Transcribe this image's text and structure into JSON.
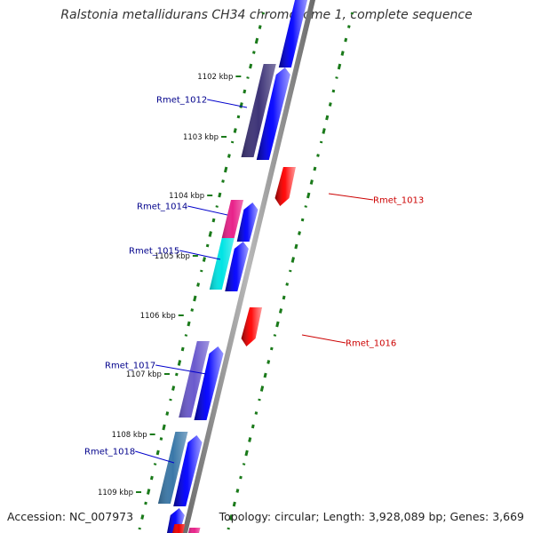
{
  "title": "Ralstonia metallidurans CH34 chromosome 1, complete sequence",
  "accession": "Accession: NC_007973",
  "topology": "Topology: circular; Length: 3,928,089 bp; Genes: 3,669",
  "colors": {
    "backbone": "#8c8c8c",
    "forward_cds": "#0000ee",
    "reverse_cds": "#ee0000",
    "gc_ticks": "#1a7a1a",
    "label_forward": "#00008b",
    "label_reverse": "#cc0000"
  },
  "ticks": [
    {
      "label": "1102 kbp"
    },
    {
      "label": "1103 kbp"
    },
    {
      "label": "1104 kbp"
    },
    {
      "label": "1105 kbp"
    },
    {
      "label": "1106 kbp"
    },
    {
      "label": "1107 kbp"
    },
    {
      "label": "1108 kbp"
    },
    {
      "label": "1109 kbp"
    }
  ],
  "genes_forward": [
    {
      "label": "Rmet_1012",
      "color": "#3d3377"
    },
    {
      "label": "Rmet_1014",
      "color": "#e8228a"
    },
    {
      "label": "Rmet_1015",
      "color": "#00e4e4"
    },
    {
      "label": "Rmet_1017",
      "color": "#6a5acd"
    },
    {
      "label": "Rmet_1018",
      "color": "#3a78a8"
    }
  ],
  "genes_reverse": [
    {
      "label": "Rmet_1013"
    },
    {
      "label": "Rmet_1016"
    }
  ]
}
